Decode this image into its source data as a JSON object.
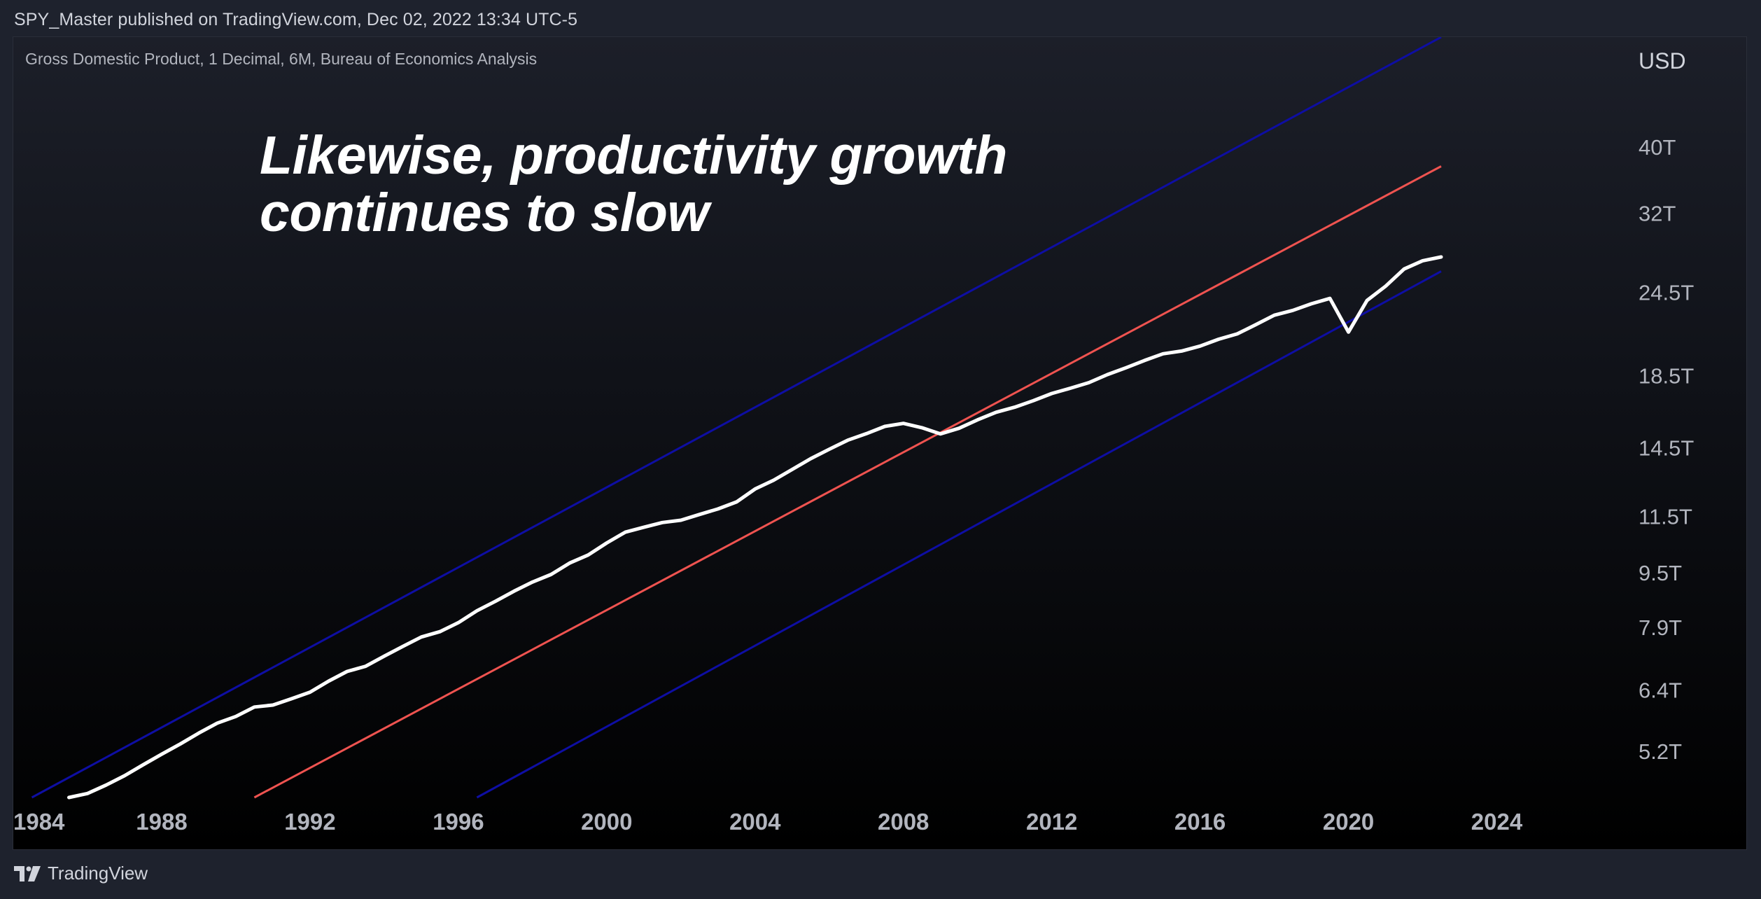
{
  "header": {
    "published": "SPY_Master published on TradingView.com, Dec 02, 2022 13:34 UTC-5"
  },
  "footer": {
    "brand": "TradingView",
    "logo_icon": "tradingview-logo-icon"
  },
  "chart_data": {
    "type": "line",
    "title": "Gross Domestic Product, 1 Decimal, 6M, Bureau of Economics Analysis",
    "annotation": [
      "Likewise, productivity growth",
      "continues to slow"
    ],
    "unit_label": "USD",
    "y_scale": "log",
    "xlim": [
      1984,
      2026.5
    ],
    "ylim": [
      4.45,
      58
    ],
    "x_ticks": [
      {
        "value": 1984,
        "label": "1984"
      },
      {
        "value": 1988,
        "label": "1988"
      },
      {
        "value": 1992,
        "label": "1992"
      },
      {
        "value": 1996,
        "label": "1996"
      },
      {
        "value": 2000,
        "label": "2000"
      },
      {
        "value": 2004,
        "label": "2004"
      },
      {
        "value": 2008,
        "label": "2008"
      },
      {
        "value": 2012,
        "label": "2012"
      },
      {
        "value": 2016,
        "label": "2016"
      },
      {
        "value": 2020,
        "label": "2020"
      },
      {
        "value": 2024,
        "label": "2024"
      }
    ],
    "y_ticks": [
      {
        "value": 40,
        "label": "40T"
      },
      {
        "value": 32,
        "label": "32T"
      },
      {
        "value": 24.5,
        "label": "24.5T"
      },
      {
        "value": 18.5,
        "label": "18.5T"
      },
      {
        "value": 14.5,
        "label": "14.5T"
      },
      {
        "value": 11.5,
        "label": "11.5T"
      },
      {
        "value": 9.5,
        "label": "9.5T"
      },
      {
        "value": 7.9,
        "label": "7.9T"
      },
      {
        "value": 6.4,
        "label": "6.4T"
      },
      {
        "value": 5.2,
        "label": "5.2T"
      }
    ],
    "series": [
      {
        "color": "#ffffff",
        "points": [
          [
            1985.5,
            4.45
          ],
          [
            1986.0,
            4.51
          ],
          [
            1986.5,
            4.64
          ],
          [
            1987.0,
            4.79
          ],
          [
            1987.5,
            4.97
          ],
          [
            1988.0,
            5.15
          ],
          [
            1988.5,
            5.33
          ],
          [
            1989.0,
            5.53
          ],
          [
            1989.5,
            5.72
          ],
          [
            1990.0,
            5.85
          ],
          [
            1990.5,
            6.04
          ],
          [
            1991.0,
            6.08
          ],
          [
            1991.5,
            6.21
          ],
          [
            1992.0,
            6.35
          ],
          [
            1992.5,
            6.59
          ],
          [
            1993.0,
            6.81
          ],
          [
            1993.5,
            6.93
          ],
          [
            1994.0,
            7.17
          ],
          [
            1994.5,
            7.41
          ],
          [
            1995.0,
            7.65
          ],
          [
            1995.5,
            7.79
          ],
          [
            1996.0,
            8.03
          ],
          [
            1996.5,
            8.36
          ],
          [
            1997.0,
            8.63
          ],
          [
            1997.5,
            8.93
          ],
          [
            1998.0,
            9.21
          ],
          [
            1998.5,
            9.45
          ],
          [
            1999.0,
            9.82
          ],
          [
            1999.5,
            10.09
          ],
          [
            2000.0,
            10.51
          ],
          [
            2000.5,
            10.9
          ],
          [
            2001.0,
            11.08
          ],
          [
            2001.5,
            11.26
          ],
          [
            2002.0,
            11.35
          ],
          [
            2002.5,
            11.57
          ],
          [
            2003.0,
            11.79
          ],
          [
            2003.5,
            12.07
          ],
          [
            2004.0,
            12.61
          ],
          [
            2004.5,
            12.99
          ],
          [
            2005.0,
            13.47
          ],
          [
            2005.5,
            13.97
          ],
          [
            2006.0,
            14.42
          ],
          [
            2006.5,
            14.87
          ],
          [
            2007.0,
            15.2
          ],
          [
            2007.5,
            15.58
          ],
          [
            2008.0,
            15.74
          ],
          [
            2008.5,
            15.51
          ],
          [
            2009.0,
            15.19
          ],
          [
            2009.5,
            15.48
          ],
          [
            2010.0,
            15.93
          ],
          [
            2010.5,
            16.34
          ],
          [
            2011.0,
            16.62
          ],
          [
            2011.5,
            16.99
          ],
          [
            2012.0,
            17.41
          ],
          [
            2012.5,
            17.72
          ],
          [
            2013.0,
            18.06
          ],
          [
            2013.5,
            18.56
          ],
          [
            2014.0,
            18.99
          ],
          [
            2014.5,
            19.46
          ],
          [
            2015.0,
            19.91
          ],
          [
            2015.5,
            20.09
          ],
          [
            2016.0,
            20.43
          ],
          [
            2016.5,
            20.91
          ],
          [
            2017.0,
            21.29
          ],
          [
            2017.5,
            21.96
          ],
          [
            2018.0,
            22.68
          ],
          [
            2018.5,
            23.05
          ],
          [
            2019.0,
            23.57
          ],
          [
            2019.5,
            24.0
          ],
          [
            2020.0,
            21.42
          ],
          [
            2020.5,
            23.84
          ],
          [
            2021.0,
            25.01
          ],
          [
            2021.5,
            26.51
          ],
          [
            2022.0,
            27.26
          ],
          [
            2022.5,
            27.61
          ]
        ]
      }
    ],
    "channel_lines": [
      {
        "color": "#0e0ea3",
        "from": [
          1984.5,
          4.45
        ],
        "to": [
          2022.5,
          58.0
        ]
      },
      {
        "color": "#ef5350",
        "from": [
          1990.5,
          4.45
        ],
        "to": [
          2022.5,
          37.5
        ]
      },
      {
        "color": "#0e0ea3",
        "from": [
          1996.5,
          4.45
        ],
        "to": [
          2022.5,
          26.3
        ]
      }
    ]
  }
}
